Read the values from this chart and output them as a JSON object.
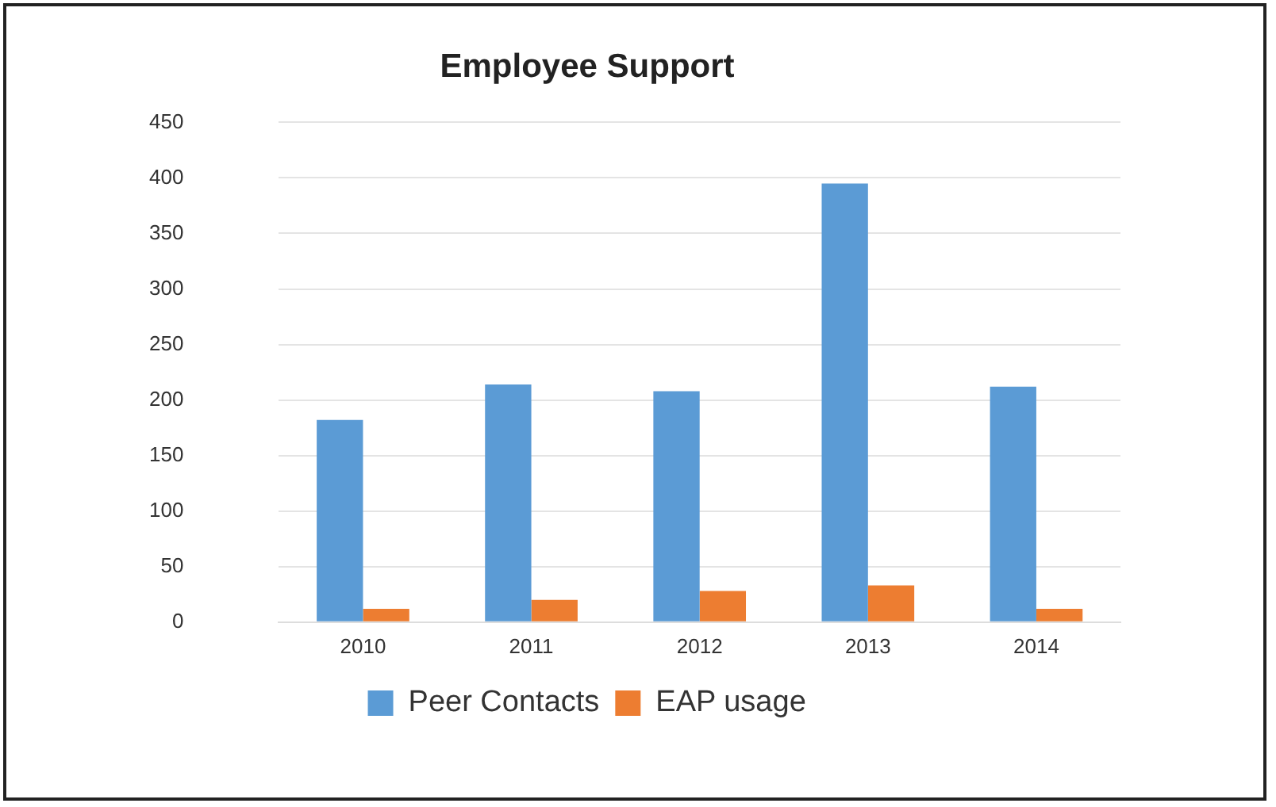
{
  "chart_data": {
    "type": "bar",
    "title": "Employee Support",
    "categories": [
      "2010",
      "2011",
      "2012",
      "2013",
      "2014"
    ],
    "series": [
      {
        "name": "Peer Contacts",
        "color": "#5b9bd5",
        "values": [
          182,
          214,
          208,
          395,
          212
        ]
      },
      {
        "name": "EAP usage",
        "color": "#ed7d31",
        "values": [
          12,
          20,
          28,
          33,
          12
        ]
      }
    ],
    "ylim": [
      0,
      450
    ],
    "yticks": [
      0,
      50,
      100,
      150,
      200,
      250,
      300,
      350,
      400,
      450
    ],
    "grid": "y",
    "legend": "bottom"
  }
}
